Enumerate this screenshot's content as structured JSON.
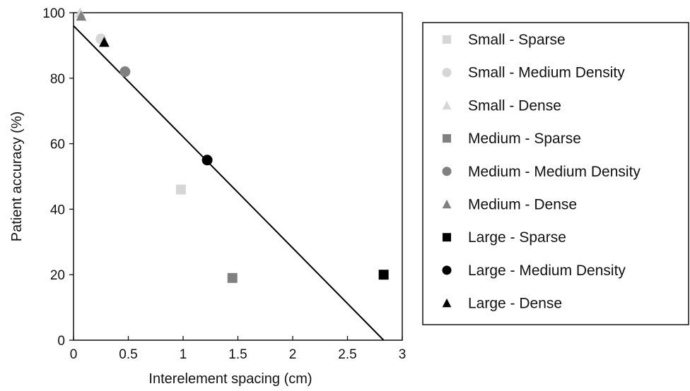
{
  "chart_data": {
    "type": "scatter",
    "title": "",
    "xlabel": "Interelement spacing (cm)",
    "ylabel": "Patient accuracy (%)",
    "xlim": [
      0,
      3
    ],
    "ylim": [
      0,
      100
    ],
    "x_ticks": [
      0,
      0.5,
      1,
      1.5,
      2,
      2.5,
      3
    ],
    "x_tick_labels": [
      "0",
      "0.5",
      "1",
      "1.5",
      "2",
      "2.5",
      "3"
    ],
    "y_ticks": [
      0,
      20,
      40,
      60,
      80,
      100
    ],
    "y_tick_labels": [
      "0",
      "20",
      "40",
      "60",
      "80",
      "100"
    ],
    "grid": false,
    "legend_position": "right",
    "series": [
      {
        "name": "Small - Sparse",
        "marker": "square",
        "color": "#d6d6d6",
        "points": [
          {
            "x": 0.98,
            "y": 46
          }
        ]
      },
      {
        "name": "Small - Medium Density",
        "marker": "circle",
        "color": "#d6d6d6",
        "points": [
          {
            "x": 0.25,
            "y": 92
          }
        ]
      },
      {
        "name": "Small - Dense",
        "marker": "triangle",
        "color": "#d6d6d6",
        "points": [
          {
            "x": 0.06,
            "y": 100
          }
        ]
      },
      {
        "name": "Medium - Sparse",
        "marker": "square",
        "color": "#808080",
        "points": [
          {
            "x": 1.45,
            "y": 19
          }
        ]
      },
      {
        "name": "Medium - Medium Density",
        "marker": "circle",
        "color": "#808080",
        "points": [
          {
            "x": 0.47,
            "y": 82
          }
        ]
      },
      {
        "name": "Medium - Dense",
        "marker": "triangle",
        "color": "#808080",
        "points": [
          {
            "x": 0.07,
            "y": 99
          }
        ]
      },
      {
        "name": "Large - Sparse",
        "marker": "square",
        "color": "#000000",
        "points": [
          {
            "x": 2.83,
            "y": 20
          }
        ]
      },
      {
        "name": "Large - Medium Density",
        "marker": "circle",
        "color": "#000000",
        "points": [
          {
            "x": 1.22,
            "y": 55
          }
        ]
      },
      {
        "name": "Large - Dense",
        "marker": "triangle",
        "color": "#000000",
        "points": [
          {
            "x": 0.28,
            "y": 91
          }
        ]
      }
    ],
    "trendline": {
      "x1": 0,
      "y1": 96,
      "x2": 2.83,
      "y2": 0,
      "color": "#000000"
    }
  }
}
